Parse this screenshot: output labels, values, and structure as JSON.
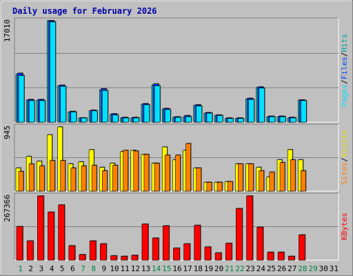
{
  "chart_data": [
    {
      "type": "bar",
      "title": "Daily usage for February 2026",
      "panel": "hits-files-pages",
      "categories": [
        "1",
        "2",
        "3",
        "4",
        "5",
        "6",
        "7",
        "8",
        "9",
        "10",
        "11",
        "12",
        "13",
        "14",
        "15",
        "16",
        "17",
        "18",
        "19",
        "20",
        "21",
        "22",
        "23",
        "24",
        "25",
        "26",
        "27",
        "28",
        "29",
        "30",
        "31"
      ],
      "ymax_label": "17010",
      "ylim": [
        0,
        17010
      ],
      "series": [
        {
          "name": "Hits",
          "color": "#00c0c0",
          "values": [
            8000,
            3700,
            3700,
            17010,
            6100,
            1700,
            700,
            1900,
            5400,
            1300,
            700,
            700,
            3000,
            6200,
            2200,
            800,
            900,
            2800,
            1500,
            1100,
            600,
            600,
            3900,
            5800,
            900,
            900,
            700,
            3700,
            0,
            0,
            0
          ]
        },
        {
          "name": "Files",
          "color": "#0040ff",
          "values": [
            8200,
            3800,
            3800,
            17000,
            6200,
            1800,
            700,
            2000,
            5600,
            1400,
            800,
            800,
            3100,
            6400,
            2300,
            900,
            1100,
            2900,
            1600,
            1200,
            700,
            700,
            4000,
            5900,
            1000,
            1000,
            800,
            3700,
            0,
            0,
            0
          ]
        },
        {
          "name": "Pages",
          "color": "#00e0ff",
          "values": [
            7800,
            3600,
            3600,
            16800,
            6000,
            1700,
            700,
            1900,
            5300,
            1200,
            700,
            700,
            2900,
            6100,
            2100,
            800,
            900,
            2700,
            1500,
            1100,
            600,
            600,
            3800,
            5700,
            900,
            900,
            700,
            3600,
            0,
            0,
            0
          ]
        }
      ],
      "legend": [
        "Pages",
        "/",
        "Files",
        "/",
        "Hits"
      ]
    },
    {
      "type": "bar",
      "panel": "visits-sites",
      "categories": [
        "1",
        "2",
        "3",
        "4",
        "5",
        "6",
        "7",
        "8",
        "9",
        "10",
        "11",
        "12",
        "13",
        "14",
        "15",
        "16",
        "17",
        "18",
        "19",
        "20",
        "21",
        "22",
        "23",
        "24",
        "25",
        "26",
        "27",
        "28",
        "29",
        "30",
        "31"
      ],
      "ymax_label": "945",
      "ylim": [
        0,
        945
      ],
      "series": [
        {
          "name": "Visits",
          "color": "#ffff00",
          "values": [
            340,
            510,
            440,
            830,
            945,
            400,
            430,
            610,
            350,
            410,
            580,
            600,
            540,
            410,
            650,
            460,
            600,
            340,
            130,
            130,
            140,
            400,
            400,
            350,
            210,
            460,
            610,
            460,
            0,
            0,
            0
          ]
        },
        {
          "name": "Sites",
          "color": "#ff8000",
          "values": [
            290,
            400,
            370,
            450,
            450,
            340,
            370,
            380,
            300,
            380,
            600,
            590,
            540,
            410,
            530,
            530,
            700,
            340,
            130,
            130,
            140,
            400,
            400,
            300,
            280,
            420,
            460,
            300,
            0,
            0,
            0
          ]
        }
      ],
      "legend": [
        "Sites",
        "/",
        "Visits"
      ]
    },
    {
      "type": "bar",
      "panel": "kbytes",
      "categories": [
        "1",
        "2",
        "3",
        "4",
        "5",
        "6",
        "7",
        "8",
        "9",
        "10",
        "11",
        "12",
        "13",
        "14",
        "15",
        "16",
        "17",
        "18",
        "19",
        "20",
        "21",
        "22",
        "23",
        "24",
        "25",
        "26",
        "27",
        "28",
        "29",
        "30",
        "31"
      ],
      "ymax_label": "267366",
      "ylim": [
        0,
        267366
      ],
      "series": [
        {
          "name": "KBytes",
          "color": "#ff0000",
          "values": [
            140000,
            80000,
            267366,
            200000,
            230000,
            60000,
            23000,
            80000,
            68000,
            18000,
            16000,
            20000,
            150000,
            92000,
            143000,
            50000,
            68000,
            145000,
            55000,
            30000,
            70000,
            215000,
            267366,
            137000,
            33000,
            33000,
            16000,
            105000,
            0,
            0,
            0
          ]
        }
      ],
      "legend": [
        "KBytes"
      ]
    }
  ],
  "colors": {
    "background": "#c0c0c0",
    "panel_bg": "#c0c0c0",
    "title": "#0000ff",
    "weekend_day": "#00804a",
    "weekday": "#000000",
    "gridline": "#808080"
  },
  "weekend_days": [
    "1",
    "7",
    "8",
    "14",
    "15",
    "21",
    "22",
    "28",
    "29"
  ]
}
